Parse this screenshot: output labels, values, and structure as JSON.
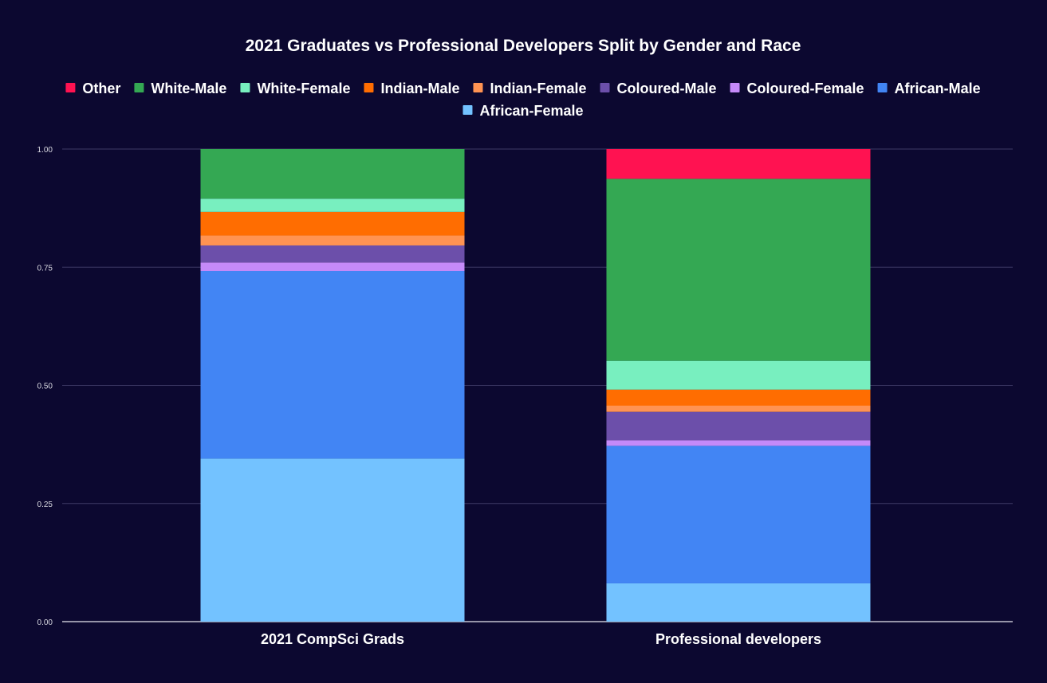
{
  "chart_data": {
    "type": "bar",
    "stacked": true,
    "title": "2021 Graduates vs Professional Developers Split by Gender and Race",
    "categories": [
      "2021 CompSci Grads",
      "Professional developers"
    ],
    "ylim": [
      0,
      1
    ],
    "yticks": [
      "0.00",
      "0.25",
      "0.50",
      "0.75",
      "1.00"
    ],
    "ytick_values": [
      0,
      0.25,
      0.5,
      0.75,
      1.0
    ],
    "legend_position": "top-center",
    "grid": true,
    "series": [
      {
        "name": "African-Female",
        "color": "#73c2ff",
        "values": [
          0.345,
          0.081
        ]
      },
      {
        "name": "African-Male",
        "color": "#4285f4",
        "values": [
          0.397,
          0.291
        ]
      },
      {
        "name": "Coloured-Female",
        "color": "#c58af9",
        "values": [
          0.018,
          0.012
        ]
      },
      {
        "name": "Coloured-Male",
        "color": "#6c4faa",
        "values": [
          0.036,
          0.06
        ]
      },
      {
        "name": "Indian-Female",
        "color": "#ff9352",
        "values": [
          0.021,
          0.013
        ]
      },
      {
        "name": "Indian-Male",
        "color": "#ff6d01",
        "values": [
          0.05,
          0.034
        ]
      },
      {
        "name": "White-Female",
        "color": "#78efbf",
        "values": [
          0.028,
          0.061
        ]
      },
      {
        "name": "White-Male",
        "color": "#34a853",
        "values": [
          0.105,
          0.385
        ]
      },
      {
        "name": "Other",
        "color": "#ff1251",
        "values": [
          0.0,
          0.063
        ]
      }
    ],
    "legend_order": [
      "Other",
      "White-Male",
      "White-Female",
      "Indian-Male",
      "Indian-Female",
      "Coloured-Male",
      "Coloured-Female",
      "African-Male",
      "African-Female"
    ]
  }
}
